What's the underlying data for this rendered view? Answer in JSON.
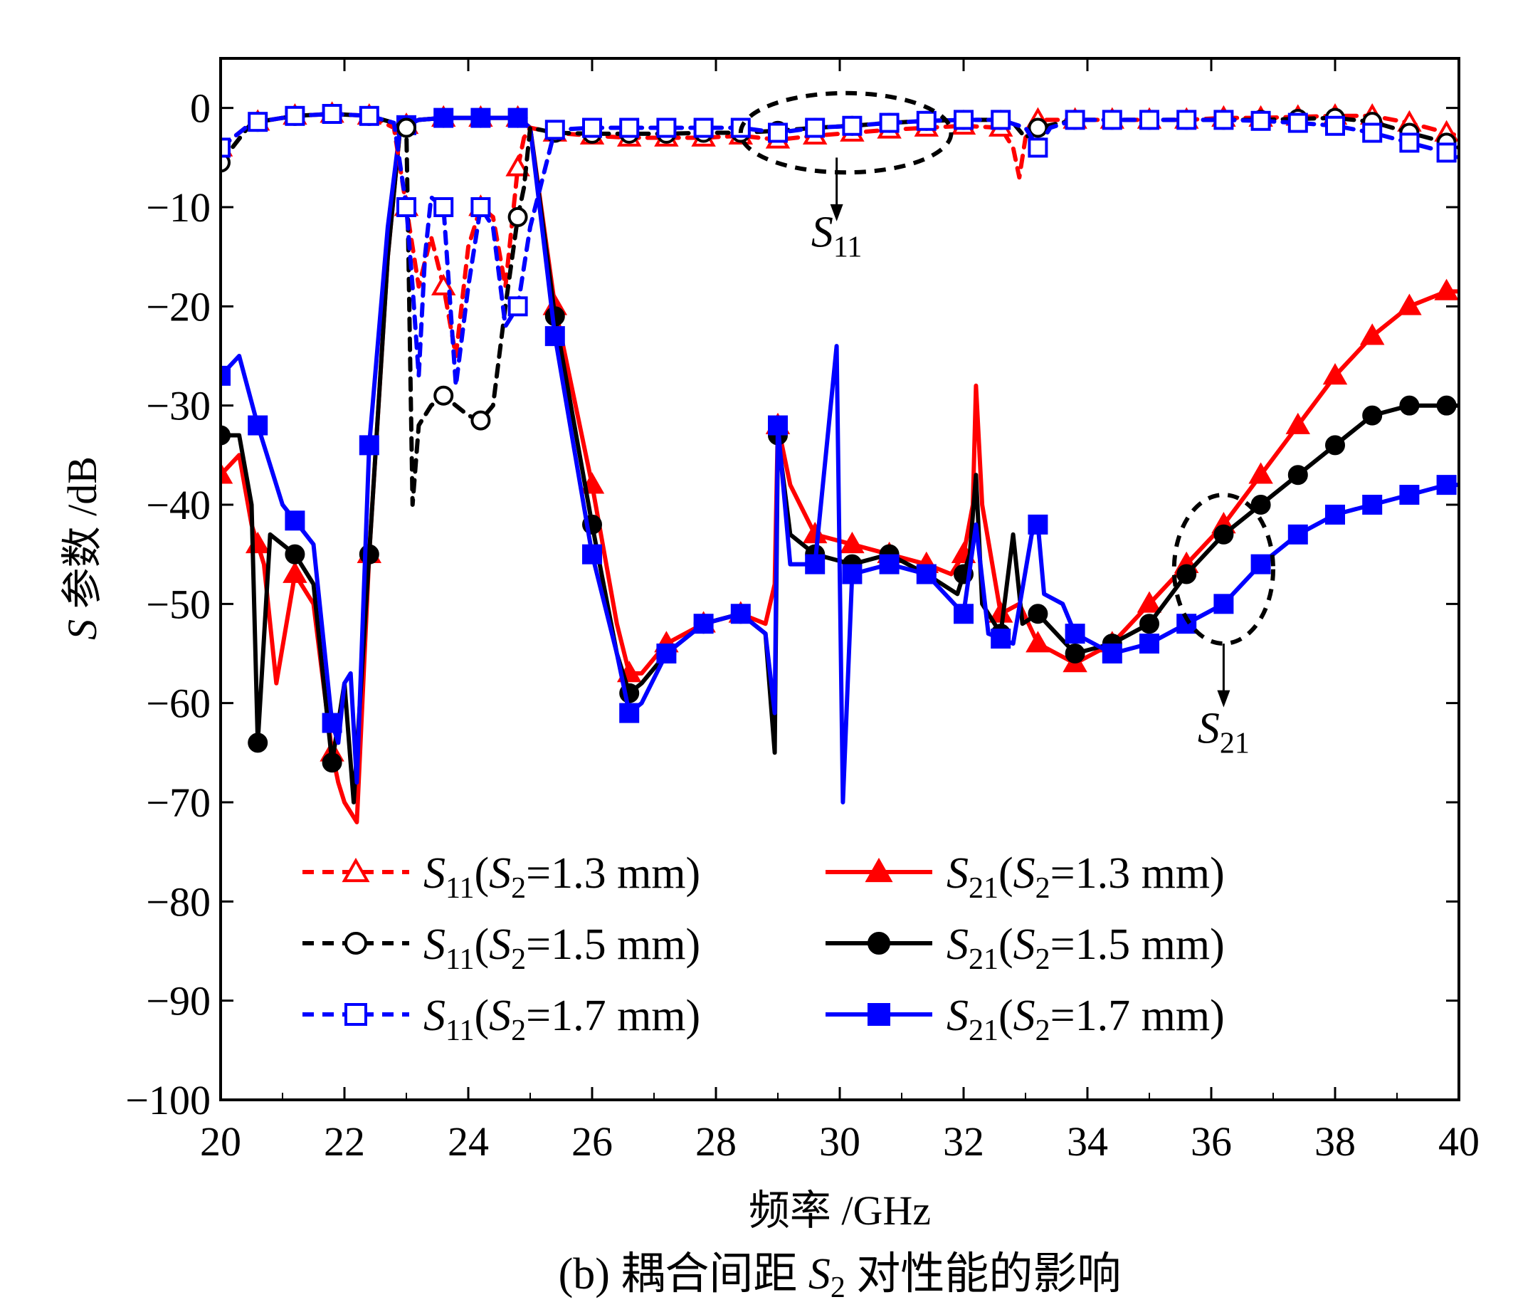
{
  "chart_data": {
    "type": "line",
    "caption_prefix": "(b) 耦合间距 ",
    "caption_var": "S",
    "caption_var_sub": "2",
    "caption_suffix": " 对性能的影响",
    "xlabel": "频率 /GHz",
    "ylabel_var": "S",
    "ylabel_rest": " 参数 /dB",
    "xlim": [
      20,
      40
    ],
    "ylim": [
      -100,
      5
    ],
    "xticks": [
      20,
      22,
      24,
      26,
      28,
      30,
      32,
      34,
      36,
      38,
      40
    ],
    "xtick_labels": [
      "20",
      "22",
      "24",
      "26",
      "28",
      "30",
      "32",
      "34",
      "36",
      "38",
      "40"
    ],
    "yticks": [
      0,
      -10,
      -20,
      -30,
      -40,
      -50,
      -60,
      -70,
      -80,
      -90,
      -100
    ],
    "ytick_labels": [
      "0",
      "−10",
      "−20",
      "−30",
      "−40",
      "−50",
      "−60",
      "−70",
      "−80",
      "−90",
      "−100"
    ],
    "grid": false,
    "legend_position": "lower-center",
    "colors": {
      "red": "#ff0000",
      "black": "#000000",
      "blue": "#0000ff"
    },
    "series": [
      {
        "name": "S11(S2=1.3 mm)",
        "label_main": "S",
        "label_sub": "11",
        "label_paren_var": "S",
        "label_paren_sub": "2",
        "label_value": "=1.3 mm)",
        "color": "#ff0000",
        "dash": true,
        "marker": "triangle",
        "filled": false,
        "x": [
          20.0,
          20.5,
          21.2,
          21.8,
          22.4,
          22.8,
          23.0,
          23.2,
          23.4,
          23.6,
          23.8,
          24.0,
          24.2,
          24.4,
          24.6,
          24.8,
          24.9,
          25.0,
          25.4,
          26.0,
          26.6,
          27.2,
          27.8,
          28.4,
          29.0,
          29.6,
          30.2,
          30.8,
          31.4,
          32.0,
          32.6,
          32.8,
          32.9,
          33.0,
          33.2,
          33.8,
          34.4,
          35.0,
          35.6,
          36.2,
          36.8,
          37.4,
          38.0,
          38.6,
          39.2,
          39.8,
          40.0
        ],
        "y": [
          -4,
          -1.5,
          -0.8,
          -0.6,
          -0.8,
          -2,
          -10,
          -18,
          -13,
          -18,
          -25,
          -14,
          -10,
          -11,
          -18,
          -6,
          -3,
          -2,
          -2.5,
          -2.8,
          -3.0,
          -3.0,
          -3.0,
          -2.8,
          -3.2,
          -2.8,
          -2.5,
          -2.2,
          -2.0,
          -1.8,
          -2.0,
          -4,
          -7,
          -3,
          -1.2,
          -1.2,
          -1.2,
          -1.2,
          -1.2,
          -1.0,
          -1.0,
          -0.9,
          -0.8,
          -0.8,
          -1.5,
          -2.5,
          -2.8
        ],
        "markers_x": [
          20.0,
          20.6,
          21.2,
          21.8,
          22.4,
          23.0,
          23.6,
          24.2,
          24.8,
          25.4,
          26.0,
          26.6,
          27.2,
          27.8,
          28.4,
          29.0,
          29.6,
          30.2,
          30.8,
          31.4,
          32.0,
          32.6,
          33.2,
          33.8,
          34.4,
          35.0,
          35.6,
          36.2,
          36.8,
          37.4,
          38.0,
          38.6,
          39.2,
          39.8
        ]
      },
      {
        "name": "S11(S2=1.5 mm)",
        "label_main": "S",
        "label_sub": "11",
        "label_paren_var": "S",
        "label_paren_sub": "2",
        "label_value": "=1.5 mm)",
        "color": "#000000",
        "dash": true,
        "marker": "circle",
        "filled": false,
        "x": [
          20.0,
          20.5,
          21.2,
          21.8,
          22.4,
          22.8,
          23.0,
          23.1,
          23.2,
          23.4,
          23.6,
          23.8,
          24.0,
          24.2,
          24.4,
          24.6,
          24.8,
          24.9,
          25.0,
          25.4,
          26.0,
          26.6,
          27.2,
          27.8,
          28.4,
          29.0,
          29.6,
          30.2,
          30.8,
          31.4,
          32.0,
          32.6,
          32.8,
          33.0,
          33.2,
          33.8,
          34.4,
          35.0,
          35.6,
          36.2,
          36.8,
          37.4,
          38.0,
          38.6,
          39.2,
          39.8,
          40.0
        ],
        "y": [
          -5.5,
          -1.5,
          -0.8,
          -0.6,
          -0.8,
          -1.5,
          -2,
          -40,
          -32,
          -30,
          -29,
          -30,
          -31,
          -31.5,
          -30,
          -20,
          -11,
          -8,
          -2,
          -2.5,
          -2.6,
          -2.6,
          -2.6,
          -2.5,
          -2.5,
          -2.3,
          -2.0,
          -1.8,
          -1.5,
          -1.3,
          -1.2,
          -1.2,
          -1.5,
          -3,
          -2.0,
          -1.2,
          -1.2,
          -1.2,
          -1.2,
          -1.2,
          -1.2,
          -1.1,
          -1.0,
          -1.4,
          -2.5,
          -3.5,
          -4.0
        ],
        "markers_x": [
          20.0,
          20.6,
          21.2,
          21.8,
          22.4,
          23.0,
          23.6,
          24.2,
          24.8,
          25.4,
          26.0,
          26.6,
          27.2,
          27.8,
          28.4,
          29.0,
          29.6,
          30.2,
          30.8,
          31.4,
          32.0,
          32.6,
          33.2,
          33.8,
          34.4,
          35.0,
          35.6,
          36.2,
          36.8,
          37.4,
          38.0,
          38.6,
          39.2,
          39.8
        ]
      },
      {
        "name": "S11(S2=1.7 mm)",
        "label_main": "S",
        "label_sub": "11",
        "label_paren_var": "S",
        "label_paren_sub": "2",
        "label_value": "=1.7 mm)",
        "color": "#0000ff",
        "dash": true,
        "marker": "square",
        "filled": false,
        "x": [
          20.0,
          20.5,
          21.2,
          21.8,
          22.4,
          22.8,
          23.0,
          23.1,
          23.2,
          23.3,
          23.4,
          23.6,
          23.8,
          24.0,
          24.2,
          24.4,
          24.6,
          24.8,
          25.0,
          25.4,
          26.0,
          26.6,
          27.2,
          27.8,
          28.4,
          29.0,
          29.6,
          30.2,
          30.8,
          31.4,
          32.0,
          32.6,
          33.0,
          33.2,
          33.4,
          33.8,
          34.4,
          35.0,
          35.6,
          36.2,
          36.8,
          37.4,
          38.0,
          38.6,
          39.2,
          39.8,
          40.0
        ],
        "y": [
          -4,
          -1.5,
          -0.8,
          -0.6,
          -0.8,
          -1.5,
          -10,
          -18,
          -27,
          -15,
          -9,
          -10,
          -28,
          -18,
          -10,
          -12,
          -22,
          -20,
          -12,
          -2.2,
          -2.0,
          -2.0,
          -2.0,
          -2.0,
          -2.0,
          -2.5,
          -2.0,
          -1.8,
          -1.5,
          -1.3,
          -1.2,
          -1.2,
          -2.0,
          -4.0,
          -2.0,
          -1.2,
          -1.2,
          -1.2,
          -1.2,
          -1.2,
          -1.3,
          -1.5,
          -1.8,
          -2.5,
          -3.5,
          -4.5,
          -5.0
        ],
        "markers_x": [
          20.0,
          20.6,
          21.2,
          21.8,
          22.4,
          23.0,
          23.6,
          24.2,
          24.8,
          25.4,
          26.0,
          26.6,
          27.2,
          27.8,
          28.4,
          29.0,
          29.6,
          30.2,
          30.8,
          31.4,
          32.0,
          32.6,
          33.2,
          33.8,
          34.4,
          35.0,
          35.6,
          36.2,
          36.8,
          37.4,
          38.0,
          38.6,
          39.2,
          39.8
        ]
      },
      {
        "name": "S21(S2=1.3 mm)",
        "label_main": "S",
        "label_sub": "21",
        "label_paren_var": "S",
        "label_paren_sub": "2",
        "label_value": "=1.3 mm)",
        "color": "#ff0000",
        "dash": false,
        "marker": "triangle",
        "filled": true,
        "x": [
          20.0,
          20.3,
          20.5,
          20.7,
          20.9,
          21.2,
          21.5,
          21.8,
          21.9,
          22.0,
          22.2,
          22.4,
          22.7,
          22.9,
          23.2,
          23.6,
          24.0,
          24.4,
          24.8,
          25.0,
          25.4,
          26.0,
          26.4,
          26.6,
          26.8,
          27.2,
          27.8,
          28.4,
          28.8,
          28.95,
          29.0,
          29.2,
          29.6,
          30.2,
          30.8,
          31.4,
          31.8,
          32.0,
          32.15,
          32.2,
          32.3,
          32.6,
          32.9,
          33.2,
          33.8,
          34.4,
          35.0,
          35.6,
          36.2,
          36.8,
          37.4,
          38.0,
          38.6,
          39.2,
          39.8,
          40.0
        ],
        "y": [
          -37,
          -35,
          -42,
          -46,
          -58,
          -47,
          -50,
          -65,
          -68,
          -70,
          -72,
          -45,
          -15,
          -2,
          -1.2,
          -1.0,
          -1.0,
          -1.0,
          -1.0,
          -2,
          -20,
          -38,
          -52,
          -57,
          -57,
          -54,
          -52,
          -51,
          -52,
          -48,
          -32,
          -38,
          -43,
          -44,
          -45,
          -46,
          -47,
          -45,
          -40,
          -28,
          -40,
          -51,
          -50,
          -54,
          -56,
          -54,
          -50,
          -46,
          -42,
          -37,
          -32,
          -27,
          -23,
          -20,
          -18.5,
          -18.5
        ],
        "markers_x": [
          20.0,
          20.6,
          21.2,
          21.8,
          22.4,
          23.0,
          23.6,
          24.2,
          24.8,
          25.4,
          26.0,
          26.6,
          27.2,
          27.8,
          28.4,
          29.0,
          29.6,
          30.2,
          30.8,
          31.4,
          32.0,
          32.6,
          33.2,
          33.8,
          34.4,
          35.0,
          35.6,
          36.2,
          36.8,
          37.4,
          38.0,
          38.6,
          39.2,
          39.8
        ]
      },
      {
        "name": "S21(S2=1.5 mm)",
        "label_main": "S",
        "label_sub": "21",
        "label_paren_var": "S",
        "label_paren_sub": "2",
        "label_value": "=1.5 mm)",
        "color": "#000000",
        "dash": false,
        "marker": "circle",
        "filled": true,
        "x": [
          20.0,
          20.3,
          20.5,
          20.6,
          20.8,
          21.2,
          21.5,
          21.8,
          22.0,
          22.15,
          22.4,
          22.7,
          22.9,
          23.2,
          23.6,
          24.0,
          24.4,
          24.8,
          25.0,
          25.4,
          26.0,
          26.4,
          26.6,
          26.8,
          27.2,
          27.8,
          28.4,
          28.8,
          28.95,
          29.0,
          29.2,
          29.6,
          30.2,
          30.8,
          31.4,
          31.9,
          32.1,
          32.2,
          32.3,
          32.6,
          32.8,
          32.95,
          33.2,
          33.8,
          34.4,
          35.0,
          35.6,
          36.2,
          36.8,
          37.4,
          38.0,
          38.6,
          39.2,
          39.8,
          40.0
        ],
        "y": [
          -33,
          -33,
          -40,
          -64,
          -43,
          -45,
          -48,
          -66,
          -58,
          -70,
          -45,
          -15,
          -2,
          -1.2,
          -1.0,
          -1.0,
          -1.0,
          -1.0,
          -2,
          -21,
          -42,
          -55,
          -59,
          -58,
          -55,
          -52,
          -51,
          -53,
          -65,
          -33,
          -43,
          -45,
          -46,
          -45,
          -47,
          -49,
          -45,
          -37,
          -50,
          -53,
          -43,
          -52,
          -51,
          -55,
          -54,
          -52,
          -47,
          -43,
          -40,
          -37,
          -34,
          -31,
          -30,
          -30,
          -30
        ],
        "markers_x": [
          20.0,
          20.6,
          21.2,
          21.8,
          22.4,
          23.0,
          23.6,
          24.2,
          24.8,
          25.4,
          26.0,
          26.6,
          27.2,
          27.8,
          28.4,
          29.0,
          29.6,
          30.2,
          30.8,
          31.4,
          32.0,
          32.6,
          33.2,
          33.8,
          34.4,
          35.0,
          35.6,
          36.2,
          36.8,
          37.4,
          38.0,
          38.6,
          39.2,
          39.8
        ]
      },
      {
        "name": "S21(S2=1.7 mm)",
        "label_main": "S",
        "label_sub": "21",
        "label_paren_var": "S",
        "label_paren_sub": "2",
        "label_value": "=1.7 mm)",
        "color": "#0000ff",
        "dash": false,
        "marker": "square",
        "filled": true,
        "x": [
          20.0,
          20.3,
          20.6,
          21.0,
          21.5,
          21.8,
          21.9,
          22.0,
          22.1,
          22.2,
          22.4,
          22.7,
          22.9,
          23.2,
          23.6,
          24.0,
          24.4,
          24.8,
          25.0,
          25.4,
          26.0,
          26.4,
          26.6,
          26.8,
          27.2,
          27.8,
          28.4,
          28.8,
          28.95,
          29.0,
          29.2,
          29.6,
          29.95,
          30.0,
          30.05,
          30.2,
          30.8,
          31.4,
          32.0,
          32.2,
          32.4,
          32.8,
          33.1,
          33.2,
          33.3,
          33.6,
          33.8,
          34.4,
          35.0,
          35.6,
          36.2,
          36.8,
          37.4,
          38.0,
          38.6,
          39.2,
          39.8,
          40.0
        ],
        "y": [
          -27,
          -25,
          -32,
          -40,
          -44,
          -62,
          -64,
          -58,
          -57,
          -68,
          -34,
          -12,
          -2,
          -1.2,
          -1.0,
          -1.0,
          -1.0,
          -1.0,
          -2,
          -23,
          -45,
          -55,
          -61,
          -60,
          -55,
          -52,
          -51,
          -53,
          -61,
          -32,
          -46,
          -46,
          -24,
          -47,
          -70,
          -47,
          -46,
          -47,
          -51,
          -42,
          -53,
          -54,
          -43,
          -42,
          -49,
          -50,
          -53,
          -55,
          -54,
          -52,
          -50,
          -46,
          -43,
          -41,
          -40,
          -39,
          -38,
          -38
        ],
        "markers_x": [
          20.0,
          20.6,
          21.2,
          21.8,
          22.4,
          23.0,
          23.6,
          24.2,
          24.8,
          25.4,
          26.0,
          26.6,
          27.2,
          27.8,
          28.4,
          29.0,
          29.6,
          30.2,
          30.8,
          31.4,
          32.0,
          32.6,
          33.2,
          33.8,
          34.4,
          35.0,
          35.6,
          36.2,
          36.8,
          37.4,
          38.0,
          38.6,
          39.2,
          39.8
        ]
      }
    ],
    "annotations": [
      {
        "name": "annotation-s11",
        "text_main": "S",
        "text_sub": "11",
        "ellipse_center": [
          30.1,
          -2.5
        ],
        "ellipse_radius": [
          1.7,
          4
        ],
        "arrow_x": 29.95,
        "arrow_y_from": -5,
        "arrow_y_to": -11,
        "label_x": 29.95,
        "label_y": -14
      },
      {
        "name": "annotation-s21",
        "text_main": "S",
        "text_sub": "21",
        "ellipse_center": [
          36.2,
          -46.5
        ],
        "ellipse_radius": [
          0.8,
          7.5
        ],
        "arrow_x": 36.2,
        "arrow_y_from": -54,
        "arrow_y_to": -60,
        "label_x": 36.2,
        "label_y": -64
      }
    ]
  }
}
